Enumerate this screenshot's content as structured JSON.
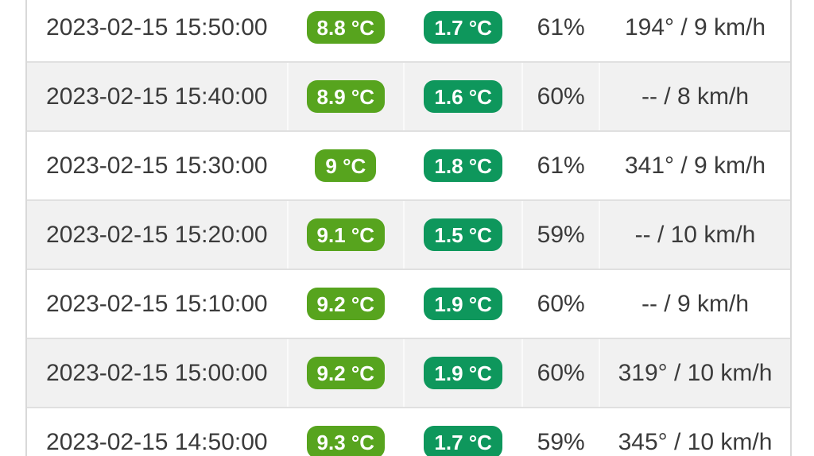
{
  "table": {
    "description": "Weather observations table",
    "columns": [
      "datetime",
      "temperature",
      "dew_point",
      "humidity",
      "wind"
    ],
    "colors": {
      "temperature_badge": "#57a41e",
      "dew_point_badge": "#0e975c",
      "row_alt_background": "#f1f1f1",
      "row_border": "#e0e0e0",
      "text": "#3b3b3b"
    },
    "rows": [
      {
        "datetime": "2023-02-15 15:50:00",
        "temperature": "8.8 °C",
        "dew_point": "1.7 °C",
        "humidity": "61%",
        "wind": "194° / 9 km/h"
      },
      {
        "datetime": "2023-02-15 15:40:00",
        "temperature": "8.9 °C",
        "dew_point": "1.6 °C",
        "humidity": "60%",
        "wind": "-- / 8 km/h"
      },
      {
        "datetime": "2023-02-15 15:30:00",
        "temperature": "9 °C",
        "dew_point": "1.8 °C",
        "humidity": "61%",
        "wind": "341° / 9 km/h"
      },
      {
        "datetime": "2023-02-15 15:20:00",
        "temperature": "9.1 °C",
        "dew_point": "1.5 °C",
        "humidity": "59%",
        "wind": "-- / 10 km/h"
      },
      {
        "datetime": "2023-02-15 15:10:00",
        "temperature": "9.2 °C",
        "dew_point": "1.9 °C",
        "humidity": "60%",
        "wind": "-- / 9 km/h"
      },
      {
        "datetime": "2023-02-15 15:00:00",
        "temperature": "9.2 °C",
        "dew_point": "1.9 °C",
        "humidity": "60%",
        "wind": "319° / 10 km/h"
      },
      {
        "datetime": "2023-02-15 14:50:00",
        "temperature": "9.3 °C",
        "dew_point": "1.7 °C",
        "humidity": "59%",
        "wind": "345° / 10 km/h"
      }
    ]
  }
}
